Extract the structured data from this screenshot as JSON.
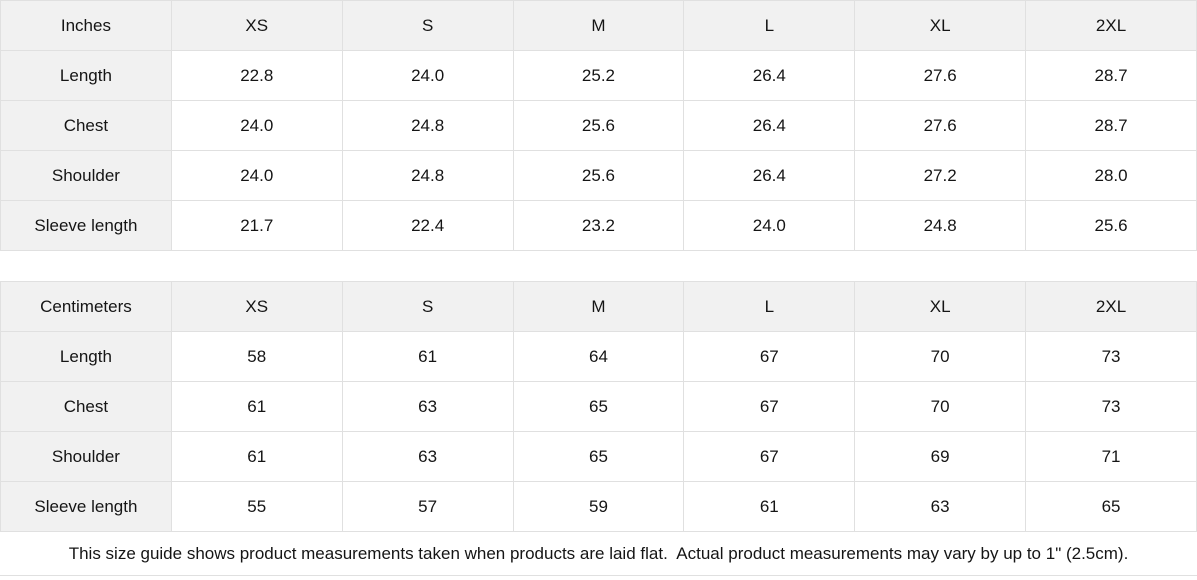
{
  "colors": {
    "header_bg": "#f1f1f1",
    "border": "#e0e0e0",
    "text": "#151515",
    "cell_bg": "#ffffff"
  },
  "tables": [
    {
      "unit_label": "Inches",
      "sizes": [
        "XS",
        "S",
        "M",
        "L",
        "XL",
        "2XL"
      ],
      "rows": [
        {
          "label": "Length",
          "values": [
            "22.8",
            "24.0",
            "25.2",
            "26.4",
            "27.6",
            "28.7"
          ]
        },
        {
          "label": "Chest",
          "values": [
            "24.0",
            "24.8",
            "25.6",
            "26.4",
            "27.6",
            "28.7"
          ]
        },
        {
          "label": "Shoulder",
          "values": [
            "24.0",
            "24.8",
            "25.6",
            "26.4",
            "27.2",
            "28.0"
          ]
        },
        {
          "label": "Sleeve length",
          "values": [
            "21.7",
            "22.4",
            "23.2",
            "24.0",
            "24.8",
            "25.6"
          ]
        }
      ]
    },
    {
      "unit_label": "Centimeters",
      "sizes": [
        "XS",
        "S",
        "M",
        "L",
        "XL",
        "2XL"
      ],
      "rows": [
        {
          "label": "Length",
          "values": [
            "58",
            "61",
            "64",
            "67",
            "70",
            "73"
          ]
        },
        {
          "label": "Chest",
          "values": [
            "61",
            "63",
            "65",
            "67",
            "70",
            "73"
          ]
        },
        {
          "label": "Shoulder",
          "values": [
            "61",
            "63",
            "65",
            "67",
            "69",
            "71"
          ]
        },
        {
          "label": "Sleeve length",
          "values": [
            "55",
            "57",
            "59",
            "61",
            "63",
            "65"
          ]
        }
      ]
    }
  ],
  "footer": {
    "note": "This size guide shows product measurements taken when products are laid flat.  Actual product measurements may vary by up to 1\" (2.5cm)."
  }
}
